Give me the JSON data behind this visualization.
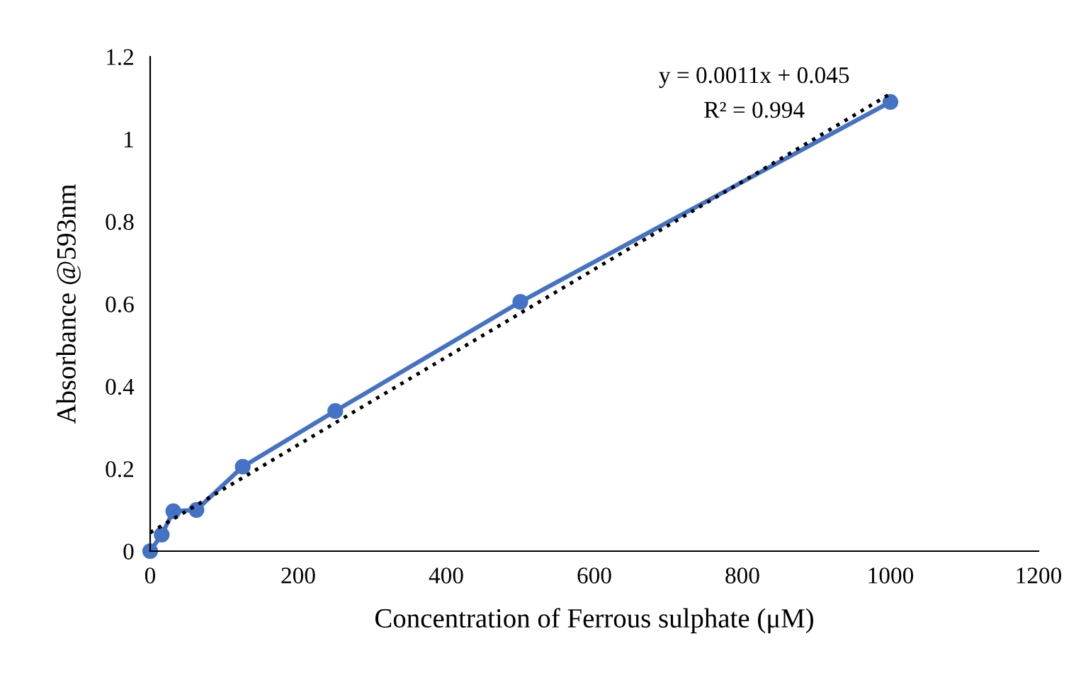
{
  "chart_data": {
    "type": "line",
    "xlabel": "Concentration of Ferrous sulphate (μM)",
    "ylabel": "Absorbance @593nm",
    "annotations": [
      "y = 0.0011x + 0.045",
      "R² = 0.994"
    ],
    "series": [
      {
        "color": "#4472c4",
        "marker": "circle",
        "line_style": "solid",
        "x": [
          0,
          15.6,
          31.25,
          62.5,
          125,
          250,
          500,
          1000
        ],
        "values": [
          0,
          0.04,
          0.097,
          0.1,
          0.205,
          0.34,
          0.605,
          1.09
        ]
      },
      {
        "color": "#000000",
        "marker": "none",
        "line_style": "dotted",
        "x": [
          0,
          1000
        ],
        "values": [
          0.045,
          1.11
        ]
      }
    ],
    "xlim": [
      0,
      1200
    ],
    "xticks": [
      0,
      200,
      400,
      600,
      800,
      1000,
      1200
    ],
    "ylim": [
      0,
      1.2
    ],
    "yticks": [
      0,
      0.2,
      0.4,
      0.6,
      0.8,
      1,
      1.2
    ],
    "grid": false,
    "legend": false
  }
}
